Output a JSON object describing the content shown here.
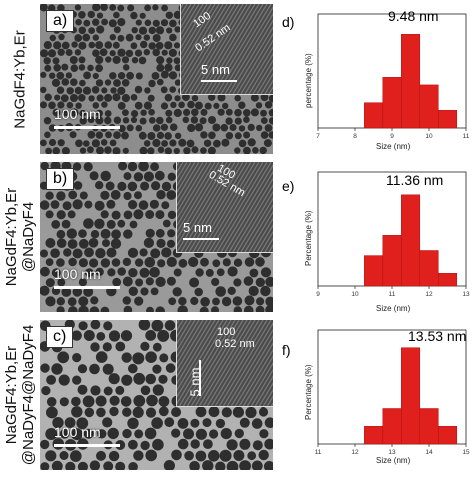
{
  "rows": [
    {
      "side_label_lines": [
        "NaGdF4:Yb,Er"
      ],
      "tem": {
        "panel": "a)",
        "scale_bar": "100 nm",
        "inset_scale": "5 nm",
        "lattice": [
          "100",
          "0.52 nm"
        ]
      },
      "hist": {
        "letter": "d)",
        "size_label": "9.48 nm",
        "ylabel": "percentage (%)",
        "xlabel": "Size (nm)"
      }
    },
    {
      "side_label_lines": [
        "NaGdF4:Yb,Er",
        "@NaDyF4"
      ],
      "tem": {
        "panel": "b)",
        "scale_bar": "100 nm",
        "inset_scale": "5 nm",
        "lattice": [
          "100",
          "0.52 nm"
        ]
      },
      "hist": {
        "letter": "e)",
        "size_label": "11.36 nm",
        "ylabel": "Percentage (%)",
        "xlabel": "Size (nm)"
      }
    },
    {
      "side_label_lines": [
        "NaGdF4:Yb,Er",
        "@NaDyF4@NaDyF4"
      ],
      "tem": {
        "panel": "c)",
        "scale_bar": "100 nm",
        "inset_scale": "5 nm",
        "lattice": [
          "100",
          "0.52 nm"
        ]
      },
      "hist": {
        "letter": "f)",
        "size_label": "13.53 nm",
        "ylabel": "Percentage (%)",
        "xlabel": "Size (nm)"
      }
    }
  ],
  "colors": {
    "bar": "#e0201c",
    "bar_edge": "#b01010"
  },
  "chart_data": [
    {
      "type": "bar",
      "title": "9.48 nm",
      "xlabel": "Size (nm)",
      "ylabel": "percentage (%)",
      "xlim": [
        7,
        11
      ],
      "xticks": [
        7,
        8,
        9,
        10,
        11
      ],
      "bin_width": 0.5,
      "x": [
        8.5,
        9.0,
        9.5,
        10.0,
        10.5
      ],
      "values": [
        10,
        20,
        37,
        17,
        7
      ],
      "ylim": [
        0,
        45
      ]
    },
    {
      "type": "bar",
      "title": "11.36 nm",
      "xlabel": "Size (nm)",
      "ylabel": "Percentage (%)",
      "xlim": [
        9,
        13
      ],
      "xticks": [
        9,
        10,
        11,
        12,
        13
      ],
      "bin_width": 0.5,
      "x": [
        10.5,
        11.0,
        11.5,
        12.0,
        12.5
      ],
      "values": [
        12,
        20,
        36,
        14,
        5
      ],
      "ylim": [
        0,
        45
      ]
    },
    {
      "type": "bar",
      "title": "13.53 nm",
      "xlabel": "Size (nm)",
      "ylabel": "Percentage (%)",
      "xlim": [
        11,
        15
      ],
      "xticks": [
        11,
        12,
        13,
        14,
        15
      ],
      "bin_width": 0.5,
      "x": [
        12.5,
        13.0,
        13.5,
        14.0,
        14.5
      ],
      "values": [
        7,
        14,
        38,
        14,
        7
      ],
      "ylim": [
        0,
        45
      ]
    }
  ]
}
